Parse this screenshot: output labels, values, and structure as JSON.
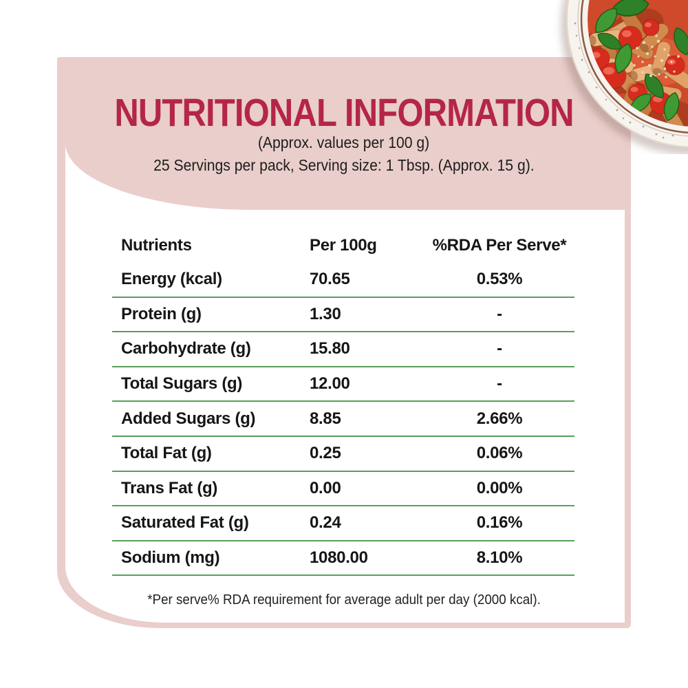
{
  "header": {
    "title": "NUTRITIONAL INFORMATION",
    "subtitle1": "(Approx. values per 100 g)",
    "subtitle2": "25 Servings per pack, Serving size: 1 Tbsp. (Approx. 15 g)."
  },
  "table": {
    "columns": [
      "Nutrients",
      "Per 100g",
      "%RDA Per Serve*"
    ],
    "rows": [
      {
        "nutrient": "Energy (kcal)",
        "per_100g": "70.65",
        "rda_per_serve": "0.53%"
      },
      {
        "nutrient": "Protein (g)",
        "per_100g": "1.30",
        "rda_per_serve": "-"
      },
      {
        "nutrient": "Carbohydrate (g)",
        "per_100g": "15.80",
        "rda_per_serve": "-"
      },
      {
        "nutrient": "Total Sugars (g)",
        "per_100g": "12.00",
        "rda_per_serve": "-"
      },
      {
        "nutrient": "Added Sugars (g)",
        "per_100g": "8.85",
        "rda_per_serve": "2.66%"
      },
      {
        "nutrient": "Total Fat (g)",
        "per_100g": "0.25",
        "rda_per_serve": "0.06%"
      },
      {
        "nutrient": "Trans Fat (g)",
        "per_100g": "0.00",
        "rda_per_serve": "0.00%"
      },
      {
        "nutrient": "Saturated Fat (g)",
        "per_100g": "0.24",
        "rda_per_serve": "0.16%"
      },
      {
        "nutrient": "Sodium (mg)",
        "per_100g": "1080.00",
        "rda_per_serve": "8.10%"
      }
    ],
    "footnote": "*Per serve% RDA requirement for average adult per day (2000 kcal)."
  },
  "image": {
    "name": "pasta-plate-photo"
  },
  "colors": {
    "accent_red": "#b42647",
    "background_pink": "#e9cecb",
    "divider_green": "#56a058"
  }
}
